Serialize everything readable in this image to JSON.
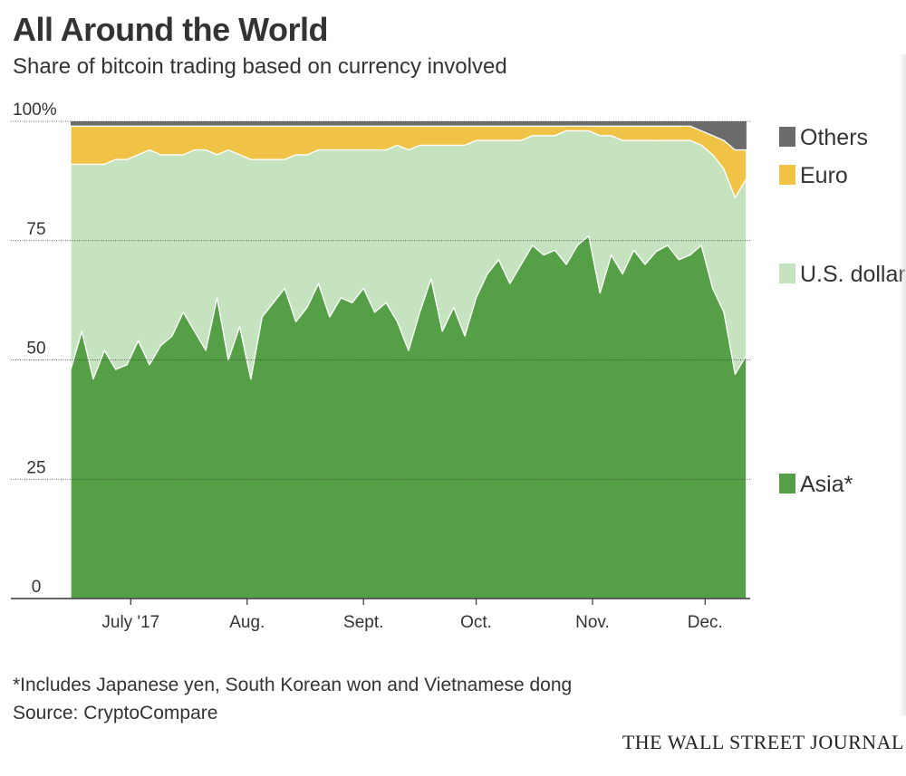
{
  "title": "All Around the World",
  "subtitle": "Share of bitcoin trading based on currency involved",
  "footnote": "*Includes Japanese yen, South Korean won and Vietnamese dong",
  "source": "Source: CryptoCompare",
  "brand": "THE WALL STREET JOURNAL",
  "colors": {
    "asia": "#55a046",
    "usd": "#c6e3c0",
    "euro": "#f0c245",
    "others": "#6b6b6b",
    "axis": "#333333",
    "grid": "#333333"
  },
  "chart_data": {
    "type": "area",
    "stacked": true,
    "x_axis": {
      "ticks": [
        "July '17",
        "Aug.",
        "Sept.",
        "Oct.",
        "Nov.",
        "Dec."
      ],
      "tick_dates": [
        "2017-07-01",
        "2017-08-01",
        "2017-09-01",
        "2017-10-01",
        "2017-11-01",
        "2017-12-01"
      ],
      "range": [
        "2017-06-15",
        "2017-12-13"
      ]
    },
    "y_axis": {
      "ticks": [
        0,
        25,
        50,
        75
      ],
      "top_label": "100%",
      "range": [
        0,
        100
      ]
    },
    "legend_position": "right",
    "x": [
      "2017-06-15",
      "2017-06-18",
      "2017-06-21",
      "2017-06-24",
      "2017-06-27",
      "2017-06-30",
      "2017-07-03",
      "2017-07-06",
      "2017-07-09",
      "2017-07-12",
      "2017-07-15",
      "2017-07-18",
      "2017-07-21",
      "2017-07-24",
      "2017-07-27",
      "2017-07-30",
      "2017-08-02",
      "2017-08-05",
      "2017-08-08",
      "2017-08-11",
      "2017-08-14",
      "2017-08-17",
      "2017-08-20",
      "2017-08-23",
      "2017-08-26",
      "2017-08-29",
      "2017-09-01",
      "2017-09-04",
      "2017-09-07",
      "2017-09-10",
      "2017-09-13",
      "2017-09-16",
      "2017-09-19",
      "2017-09-22",
      "2017-09-25",
      "2017-09-28",
      "2017-10-01",
      "2017-10-04",
      "2017-10-07",
      "2017-10-10",
      "2017-10-13",
      "2017-10-16",
      "2017-10-19",
      "2017-10-22",
      "2017-10-25",
      "2017-10-28",
      "2017-10-31",
      "2017-11-03",
      "2017-11-06",
      "2017-11-09",
      "2017-11-12",
      "2017-11-15",
      "2017-11-18",
      "2017-11-21",
      "2017-11-24",
      "2017-11-27",
      "2017-11-30",
      "2017-12-03",
      "2017-12-06",
      "2017-12-09",
      "2017-12-12"
    ],
    "series": [
      {
        "name": "Asia*",
        "key": "asia",
        "values": [
          48,
          56,
          46,
          52,
          48,
          49,
          54,
          49,
          53,
          55,
          60,
          56,
          52,
          63,
          50,
          57,
          46,
          59,
          62,
          65,
          58,
          61,
          66,
          59,
          63,
          62,
          65,
          60,
          62,
          58,
          52,
          60,
          67,
          56,
          61,
          55,
          63,
          68,
          71,
          66,
          70,
          74,
          72,
          73,
          70,
          74,
          76,
          64,
          72,
          68,
          73,
          70,
          72,
          74,
          71,
          72,
          74,
          65,
          60,
          47,
          51
        ]
      },
      {
        "name": "U.S. dollar",
        "key": "usd",
        "values": [
          43,
          35,
          45,
          39,
          44,
          43,
          39,
          45,
          40,
          38,
          33,
          38,
          42,
          30,
          44,
          36,
          46,
          33,
          30,
          27,
          35,
          32,
          28,
          35,
          31,
          32,
          29,
          34,
          32,
          37,
          42,
          35,
          28,
          39,
          34,
          40,
          33,
          28,
          25,
          30,
          26,
          23,
          25,
          24,
          28,
          24,
          22,
          33,
          25,
          28,
          23,
          26,
          23,
          22,
          25,
          24,
          21,
          28,
          30,
          37,
          37
        ]
      },
      {
        "name": "Euro",
        "key": "euro",
        "values": [
          8,
          8,
          8,
          8,
          7,
          7,
          6,
          5,
          6,
          6,
          6,
          5,
          5,
          6,
          5,
          6,
          7,
          7,
          7,
          7,
          6,
          6,
          5,
          5,
          5,
          5,
          5,
          5,
          5,
          4,
          5,
          4,
          4,
          4,
          4,
          4,
          3,
          3,
          3,
          3,
          3,
          2,
          2,
          2,
          1,
          1,
          1,
          2,
          2,
          3,
          3,
          3,
          3,
          3,
          3,
          3,
          3,
          4,
          6,
          10,
          6
        ]
      },
      {
        "name": "Others",
        "key": "others",
        "values": [
          1,
          1,
          1,
          1,
          1,
          1,
          1,
          1,
          1,
          1,
          1,
          1,
          1,
          1,
          1,
          1,
          1,
          1,
          1,
          1,
          1,
          1,
          1,
          1,
          1,
          1,
          1,
          1,
          1,
          1,
          1,
          1,
          1,
          1,
          1,
          1,
          1,
          1,
          1,
          1,
          1,
          1,
          1,
          1,
          1,
          1,
          1,
          1,
          1,
          1,
          1,
          1,
          1,
          1,
          1,
          1,
          2,
          3,
          4,
          6,
          6
        ]
      }
    ]
  }
}
